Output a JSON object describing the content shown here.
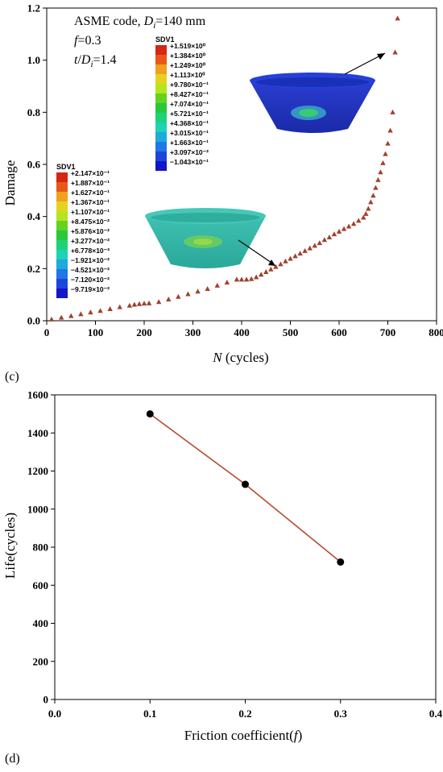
{
  "chart_data": [
    {
      "type": "scatter",
      "panel_label": "(c)",
      "xlabel_italic": "N",
      "xlabel_rest": " (cycles)",
      "ylabel": "Damage",
      "xlim": [
        0,
        800
      ],
      "ylim": [
        0,
        1.2
      ],
      "xticks": [
        0,
        100,
        200,
        300,
        400,
        500,
        600,
        700,
        800
      ],
      "yticks": [
        "0.0",
        "0.2",
        "0.4",
        "0.6",
        "0.8",
        "1.0",
        "1.2"
      ],
      "marker_color": "#a0412d",
      "annotations": {
        "line1_prefix": "ASME code, ",
        "line1_var": "D",
        "line1_sub": "i",
        "line1_suffix": "=140 mm",
        "line2_var": "f",
        "line2_suffix": "=0.3",
        "line3_var1": "t",
        "line3_slash": "/",
        "line3_var2": "D",
        "line3_sub": "i",
        "line3_suffix": "=1.4"
      },
      "series": [
        {
          "x": [
            10,
            30,
            50,
            70,
            90,
            110,
            130,
            150,
            170,
            180,
            190,
            200,
            210,
            230,
            250,
            270,
            290,
            310,
            330,
            350,
            370,
            390,
            400,
            410,
            420,
            430,
            440,
            450,
            460,
            470,
            480,
            490,
            500,
            510,
            520,
            530,
            540,
            550,
            560,
            570,
            580,
            590,
            600,
            610,
            620,
            630,
            640,
            650,
            655,
            660,
            665,
            670,
            675,
            680,
            685,
            690,
            695,
            700,
            705,
            710,
            715,
            720
          ],
          "y": [
            0.005,
            0.012,
            0.018,
            0.025,
            0.032,
            0.038,
            0.045,
            0.052,
            0.058,
            0.062,
            0.064,
            0.066,
            0.067,
            0.072,
            0.082,
            0.092,
            0.102,
            0.112,
            0.122,
            0.135,
            0.147,
            0.158,
            0.158,
            0.158,
            0.16,
            0.167,
            0.177,
            0.187,
            0.197,
            0.207,
            0.217,
            0.228,
            0.238,
            0.248,
            0.258,
            0.268,
            0.278,
            0.288,
            0.298,
            0.31,
            0.32,
            0.332,
            0.342,
            0.352,
            0.362,
            0.372,
            0.384,
            0.396,
            0.41,
            0.43,
            0.455,
            0.48,
            0.51,
            0.54,
            0.57,
            0.605,
            0.64,
            0.68,
            0.73,
            0.8,
            1.03,
            1.16
          ]
        }
      ],
      "legends": [
        {
          "title": "SDV1",
          "values": [
            "+1.519×10⁰",
            "+1.384×10⁰",
            "+1.249×10⁰",
            "+1.113×10⁰",
            "+9.780×10⁻¹",
            "+8.427×10⁻¹",
            "+7.074×10⁻¹",
            "+5.721×10⁻¹",
            "+4.368×10⁻¹",
            "+3.015×10⁻¹",
            "+1.663×10⁻¹",
            "+3.097×10⁻²",
            "−1.043×10⁻¹"
          ],
          "colors": [
            "#d62614",
            "#e8571a",
            "#f0a01e",
            "#e6d21e",
            "#b4e61e",
            "#64d21e",
            "#28c83c",
            "#1ed278",
            "#1ed2b4",
            "#1eaadc",
            "#1e78e6",
            "#1e46dc",
            "#1414c8"
          ]
        },
        {
          "title": "SDV1",
          "values": [
            "+2.147×10⁻¹",
            "+1.887×10⁻¹",
            "+1.627×10⁻¹",
            "+1.367×10⁻¹",
            "+1.107×10⁻¹",
            "+8.475×10⁻²",
            "+5.876×10⁻²",
            "+3.277×10⁻²",
            "+6.778×10⁻³",
            "−1.921×10⁻²",
            "−4.521×10⁻²",
            "−7.120×10⁻²",
            "−9.719×10⁻²"
          ],
          "colors": [
            "#d62614",
            "#e8571a",
            "#f0a01e",
            "#e6d21e",
            "#b4e61e",
            "#64d21e",
            "#28c83c",
            "#1ed278",
            "#1ed2b4",
            "#1eaadc",
            "#1e78e6",
            "#1e46dc",
            "#1414c8"
          ]
        }
      ]
    },
    {
      "type": "line",
      "panel_label": "(d)",
      "xlabel_prefix": "Friction coefficient(",
      "xlabel_var": "f",
      "xlabel_suffix": ")",
      "ylabel": "Life(cycles)",
      "xlim": [
        0.0,
        0.4
      ],
      "ylim": [
        0,
        1600
      ],
      "xticks": [
        "0.0",
        "0.1",
        "0.2",
        "0.3",
        "0.4"
      ],
      "yticks": [
        "0",
        "200",
        "400",
        "600",
        "800",
        "1000",
        "1200",
        "1400",
        "1600"
      ],
      "line_color": "#b84a2e",
      "marker_color": "#000000",
      "series": [
        {
          "x": [
            0.1,
            0.2,
            0.3
          ],
          "y": [
            1500,
            1130,
            722
          ]
        }
      ]
    }
  ]
}
